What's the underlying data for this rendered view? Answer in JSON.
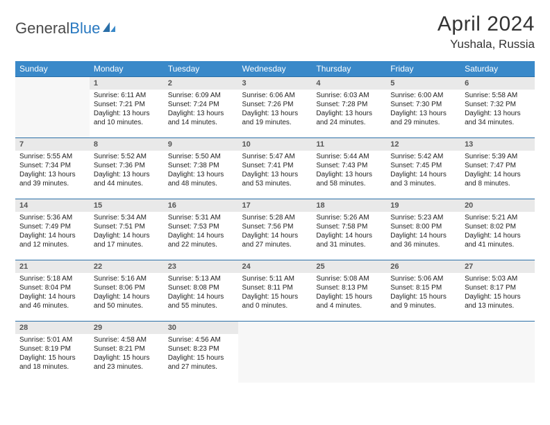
{
  "logo": {
    "text1": "General",
    "text2": "Blue"
  },
  "title": "April 2024",
  "location": "Yushala, Russia",
  "colors": {
    "header_bg": "#3a89c9",
    "header_text": "#ffffff",
    "daynum_bg": "#e9e9e9",
    "border": "#2a6fa8"
  },
  "weekdays": [
    "Sunday",
    "Monday",
    "Tuesday",
    "Wednesday",
    "Thursday",
    "Friday",
    "Saturday"
  ],
  "weeks": [
    [
      null,
      {
        "n": "1",
        "sr": "Sunrise: 6:11 AM",
        "ss": "Sunset: 7:21 PM",
        "dl": "Daylight: 13 hours and 10 minutes."
      },
      {
        "n": "2",
        "sr": "Sunrise: 6:09 AM",
        "ss": "Sunset: 7:24 PM",
        "dl": "Daylight: 13 hours and 14 minutes."
      },
      {
        "n": "3",
        "sr": "Sunrise: 6:06 AM",
        "ss": "Sunset: 7:26 PM",
        "dl": "Daylight: 13 hours and 19 minutes."
      },
      {
        "n": "4",
        "sr": "Sunrise: 6:03 AM",
        "ss": "Sunset: 7:28 PM",
        "dl": "Daylight: 13 hours and 24 minutes."
      },
      {
        "n": "5",
        "sr": "Sunrise: 6:00 AM",
        "ss": "Sunset: 7:30 PM",
        "dl": "Daylight: 13 hours and 29 minutes."
      },
      {
        "n": "6",
        "sr": "Sunrise: 5:58 AM",
        "ss": "Sunset: 7:32 PM",
        "dl": "Daylight: 13 hours and 34 minutes."
      }
    ],
    [
      {
        "n": "7",
        "sr": "Sunrise: 5:55 AM",
        "ss": "Sunset: 7:34 PM",
        "dl": "Daylight: 13 hours and 39 minutes."
      },
      {
        "n": "8",
        "sr": "Sunrise: 5:52 AM",
        "ss": "Sunset: 7:36 PM",
        "dl": "Daylight: 13 hours and 44 minutes."
      },
      {
        "n": "9",
        "sr": "Sunrise: 5:50 AM",
        "ss": "Sunset: 7:38 PM",
        "dl": "Daylight: 13 hours and 48 minutes."
      },
      {
        "n": "10",
        "sr": "Sunrise: 5:47 AM",
        "ss": "Sunset: 7:41 PM",
        "dl": "Daylight: 13 hours and 53 minutes."
      },
      {
        "n": "11",
        "sr": "Sunrise: 5:44 AM",
        "ss": "Sunset: 7:43 PM",
        "dl": "Daylight: 13 hours and 58 minutes."
      },
      {
        "n": "12",
        "sr": "Sunrise: 5:42 AM",
        "ss": "Sunset: 7:45 PM",
        "dl": "Daylight: 14 hours and 3 minutes."
      },
      {
        "n": "13",
        "sr": "Sunrise: 5:39 AM",
        "ss": "Sunset: 7:47 PM",
        "dl": "Daylight: 14 hours and 8 minutes."
      }
    ],
    [
      {
        "n": "14",
        "sr": "Sunrise: 5:36 AM",
        "ss": "Sunset: 7:49 PM",
        "dl": "Daylight: 14 hours and 12 minutes."
      },
      {
        "n": "15",
        "sr": "Sunrise: 5:34 AM",
        "ss": "Sunset: 7:51 PM",
        "dl": "Daylight: 14 hours and 17 minutes."
      },
      {
        "n": "16",
        "sr": "Sunrise: 5:31 AM",
        "ss": "Sunset: 7:53 PM",
        "dl": "Daylight: 14 hours and 22 minutes."
      },
      {
        "n": "17",
        "sr": "Sunrise: 5:28 AM",
        "ss": "Sunset: 7:56 PM",
        "dl": "Daylight: 14 hours and 27 minutes."
      },
      {
        "n": "18",
        "sr": "Sunrise: 5:26 AM",
        "ss": "Sunset: 7:58 PM",
        "dl": "Daylight: 14 hours and 31 minutes."
      },
      {
        "n": "19",
        "sr": "Sunrise: 5:23 AM",
        "ss": "Sunset: 8:00 PM",
        "dl": "Daylight: 14 hours and 36 minutes."
      },
      {
        "n": "20",
        "sr": "Sunrise: 5:21 AM",
        "ss": "Sunset: 8:02 PM",
        "dl": "Daylight: 14 hours and 41 minutes."
      }
    ],
    [
      {
        "n": "21",
        "sr": "Sunrise: 5:18 AM",
        "ss": "Sunset: 8:04 PM",
        "dl": "Daylight: 14 hours and 46 minutes."
      },
      {
        "n": "22",
        "sr": "Sunrise: 5:16 AM",
        "ss": "Sunset: 8:06 PM",
        "dl": "Daylight: 14 hours and 50 minutes."
      },
      {
        "n": "23",
        "sr": "Sunrise: 5:13 AM",
        "ss": "Sunset: 8:08 PM",
        "dl": "Daylight: 14 hours and 55 minutes."
      },
      {
        "n": "24",
        "sr": "Sunrise: 5:11 AM",
        "ss": "Sunset: 8:11 PM",
        "dl": "Daylight: 15 hours and 0 minutes."
      },
      {
        "n": "25",
        "sr": "Sunrise: 5:08 AM",
        "ss": "Sunset: 8:13 PM",
        "dl": "Daylight: 15 hours and 4 minutes."
      },
      {
        "n": "26",
        "sr": "Sunrise: 5:06 AM",
        "ss": "Sunset: 8:15 PM",
        "dl": "Daylight: 15 hours and 9 minutes."
      },
      {
        "n": "27",
        "sr": "Sunrise: 5:03 AM",
        "ss": "Sunset: 8:17 PM",
        "dl": "Daylight: 15 hours and 13 minutes."
      }
    ],
    [
      {
        "n": "28",
        "sr": "Sunrise: 5:01 AM",
        "ss": "Sunset: 8:19 PM",
        "dl": "Daylight: 15 hours and 18 minutes."
      },
      {
        "n": "29",
        "sr": "Sunrise: 4:58 AM",
        "ss": "Sunset: 8:21 PM",
        "dl": "Daylight: 15 hours and 23 minutes."
      },
      {
        "n": "30",
        "sr": "Sunrise: 4:56 AM",
        "ss": "Sunset: 8:23 PM",
        "dl": "Daylight: 15 hours and 27 minutes."
      },
      null,
      null,
      null,
      null
    ]
  ]
}
